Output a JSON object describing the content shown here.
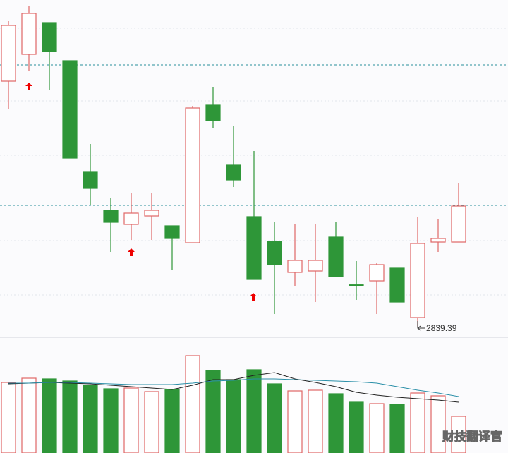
{
  "chart_data": {
    "type": "candlestick",
    "categories": [
      null,
      null,
      null,
      null,
      null,
      null,
      null,
      null,
      null,
      null,
      null,
      null,
      null,
      null,
      null,
      null,
      null,
      null,
      null,
      null,
      null,
      null,
      null
    ],
    "opens": [
      3048,
      3070.8,
      3097.8,
      3065.4,
      2970.6,
      2938.2,
      2926.2,
      2933.4,
      2925,
      2910.6,
      3027.6,
      2976.6,
      2932.8,
      2911.8,
      2885.4,
      2886.6,
      2915.4,
      2874.8,
      2878.2,
      2889,
      2847,
      2911.2,
      2911.2
    ],
    "highs": [
      3099,
      3111.6,
      3097.8,
      3065.4,
      2994.6,
      2948.4,
      2952.6,
      2952.6,
      2925,
      3027,
      3042.6,
      3010.2,
      2988.6,
      2928.6,
      2926.2,
      2926.2,
      2928.6,
      2895,
      2893.2,
      2889,
      2932.2,
      2931,
      2961.6
    ],
    "lows": [
      3024,
      3057,
      3040.2,
      2982.6,
      2942.4,
      2902.8,
      2913,
      2913,
      2887.8,
      2910.6,
      3007.8,
      2958,
      2879.4,
      2850,
      2874,
      2860.2,
      2881.8,
      2862,
      2850,
      2860.2,
      2839.39,
      2902.8,
      2911.2
    ],
    "closes": [
      3095.4,
      3105.6,
      3073.2,
      2982.6,
      2956.8,
      2928,
      2935.8,
      2938.2,
      2914.2,
      3025.2,
      3014.4,
      2964,
      2879.4,
      2892,
      2895.6,
      2895.6,
      2881.8,
      2874,
      2892,
      2860.2,
      2910,
      2914.2,
      2941.8
    ],
    "ylim": [
      2835,
      3117
    ],
    "up_color": "#e06666",
    "down_color": "#2e9638",
    "volumes": [
      100,
      106,
      105,
      102,
      96,
      91,
      92,
      87,
      90,
      138,
      117,
      104,
      118,
      98,
      88,
      89,
      84,
      72,
      70,
      69,
      85,
      81,
      52
    ],
    "vlim": [
      0,
      162
    ],
    "ma_lines": [
      {
        "color": "#222222",
        "values": [
          98,
          99,
          100,
          99,
          98,
          96,
          94,
          92,
          90,
          96,
          104,
          104,
          110,
          114,
          105,
          100,
          94,
          86,
          82,
          79,
          77,
          75,
          72
        ]
      },
      {
        "color": "#2a8fa8",
        "values": [
          99,
          99,
          100,
          100,
          99,
          98,
          97,
          97,
          97,
          99,
          102,
          103,
          105,
          105,
          104,
          103,
          102,
          101,
          99,
          94,
          89,
          85,
          80
        ]
      }
    ],
    "watermark": "财技翻译官"
  }
}
